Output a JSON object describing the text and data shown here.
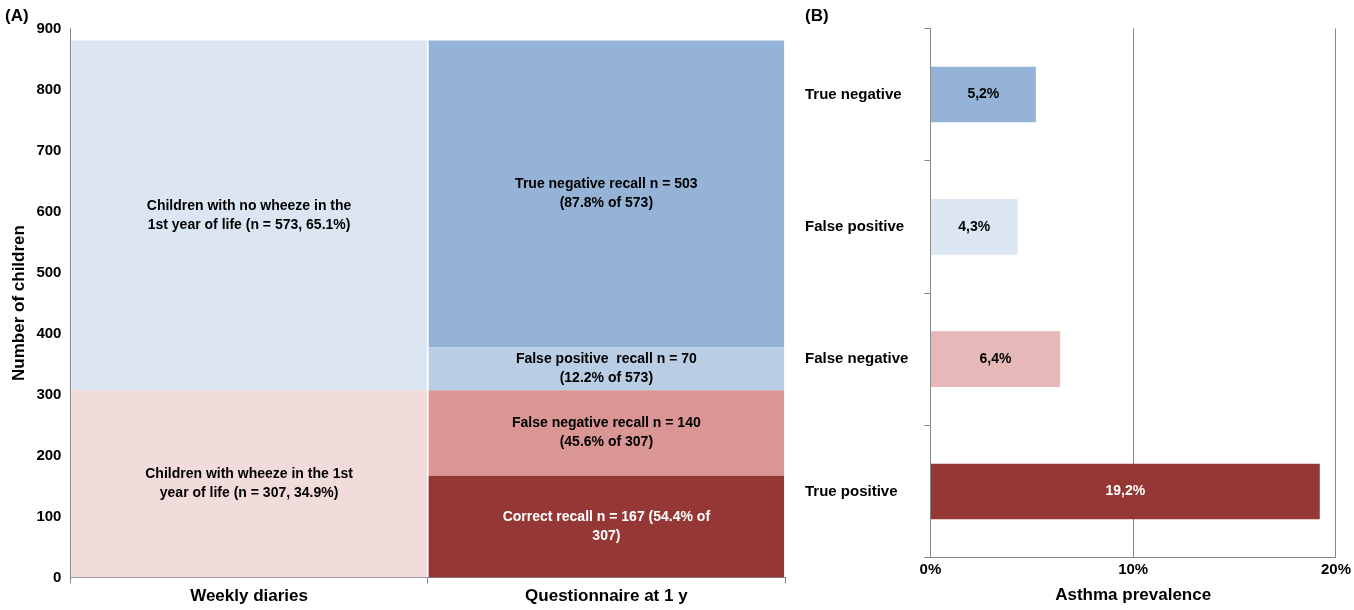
{
  "chart_data": [
    {
      "type": "bar",
      "title": "(A)",
      "ylabel": "Number of children",
      "categories": [
        "Weekly diaries",
        "Questionnaire at 1 y"
      ],
      "stacked": true,
      "ylim": [
        0,
        900
      ],
      "yticks": [
        0,
        100,
        200,
        300,
        400,
        500,
        600,
        700,
        800,
        900
      ],
      "grid": false,
      "legend": false,
      "series": [
        {
          "colors": [
            "#f2dcdb",
            "#953735"
          ],
          "values": [
            307,
            167
          ],
          "value_labels": [
            "Children with wheeze in the 1st year of life (n = 307, 34.9%)",
            "Correct recall n = 167 (54.4% of 307)"
          ]
        },
        {
          "colors": [
            "#dce6f2",
            "#d99694"
          ],
          "values": [
            573,
            140
          ],
          "value_labels": [
            "Children with no wheeze in the 1st year of life (n = 573, 65.1%)",
            "False negative recall n = 140 (45.6% of 307)"
          ]
        },
        {
          "colors": [
            "#dce6f2",
            "#b9cde5"
          ],
          "values": [
            null,
            70
          ],
          "value_labels": [
            null,
            "False positive  recall n = 70 (12.2% of 573)"
          ]
        },
        {
          "colors": [
            "#dce6f2",
            "#95b3d7"
          ],
          "values": [
            null,
            503
          ],
          "value_labels": [
            null,
            "True negative recall n = 503 (87.8% of 573)"
          ]
        }
      ]
    },
    {
      "type": "bar",
      "title": "(B)",
      "xlabel": "Asthma prevalence",
      "orientation": "horizontal",
      "categories": [
        "True negative",
        "False positive",
        "False negative",
        "True positive"
      ],
      "values": [
        5.2,
        4.3,
        6.4,
        19.2
      ],
      "colors": [
        "#95b3d7",
        "#dce6f2",
        "#e6b9b8",
        "#953735"
      ],
      "value_labels": [
        "5,2%",
        "4,3%",
        "6,4%",
        "19,2%"
      ],
      "xlim": [
        0,
        20
      ],
      "xticks": [
        {
          "value": 0,
          "label": "0%"
        },
        {
          "value": 10,
          "label": "10%"
        },
        {
          "value": 20,
          "label": "20%"
        }
      ],
      "grid": "x",
      "legend": false
    }
  ]
}
